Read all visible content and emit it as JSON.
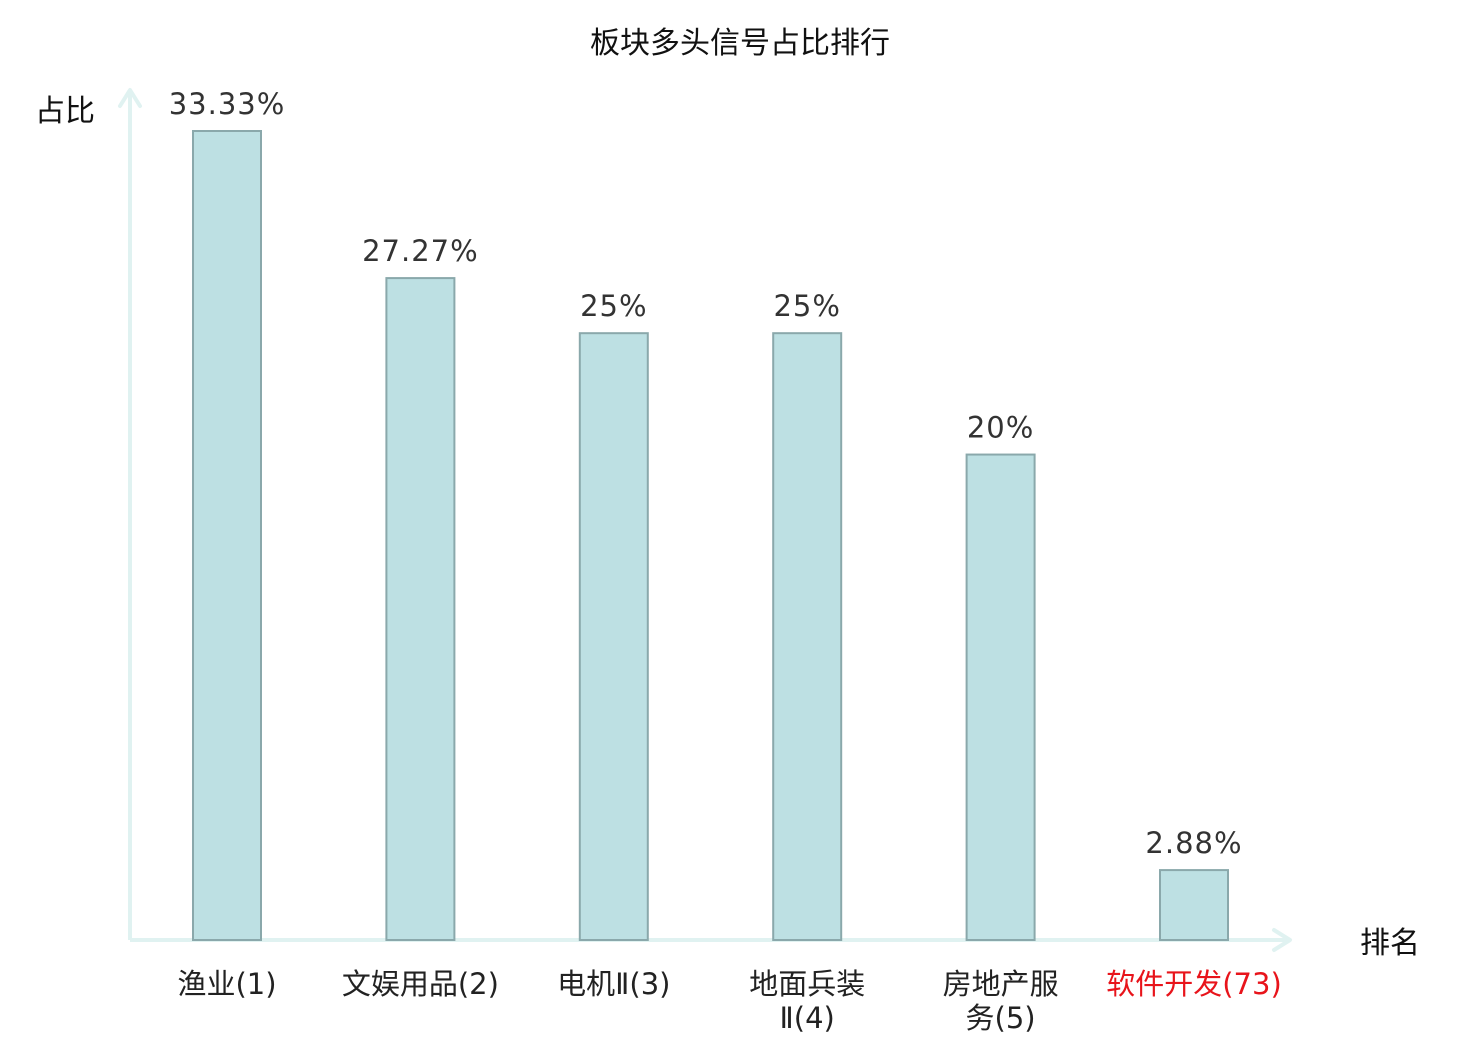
{
  "chart_data": {
    "type": "bar",
    "title": "板块多头信号占比排行",
    "ylabel": "占比",
    "xlabel": "排名",
    "categories": [
      {
        "name": "渔业",
        "lines": [
          "渔业(1)"
        ],
        "rank": "(1)",
        "highlight": false
      },
      {
        "name": "文娱用品",
        "lines": [
          "文娱用品(2)"
        ],
        "rank": "(2)",
        "highlight": false
      },
      {
        "name": "电机Ⅱ",
        "lines": [
          "电机Ⅱ(3)"
        ],
        "rank": "(3)",
        "highlight": false
      },
      {
        "name": "地面兵装Ⅱ",
        "lines": [
          "地面兵装",
          "Ⅱ(4)"
        ],
        "rank": "(4)",
        "highlight": false
      },
      {
        "name": "房地产服务",
        "lines": [
          "房地产服",
          "务(5)"
        ],
        "rank": "(5)",
        "highlight": false
      },
      {
        "name": "软件开发",
        "lines": [
          "软件开发(73)"
        ],
        "rank": "(73)",
        "highlight": true
      }
    ],
    "values": [
      33.33,
      27.27,
      25,
      25,
      20,
      2.88
    ],
    "value_labels": [
      "33.33%",
      "27.27%",
      "25%",
      "25%",
      "20%",
      "2.88%"
    ],
    "ylim": [
      0,
      35
    ],
    "grid": false,
    "colors": {
      "bar_fill": "#bde0e3",
      "bar_stroke": "#8aa8ab",
      "axis": "#e0f2f1",
      "highlight_text": "#e8141b"
    }
  }
}
